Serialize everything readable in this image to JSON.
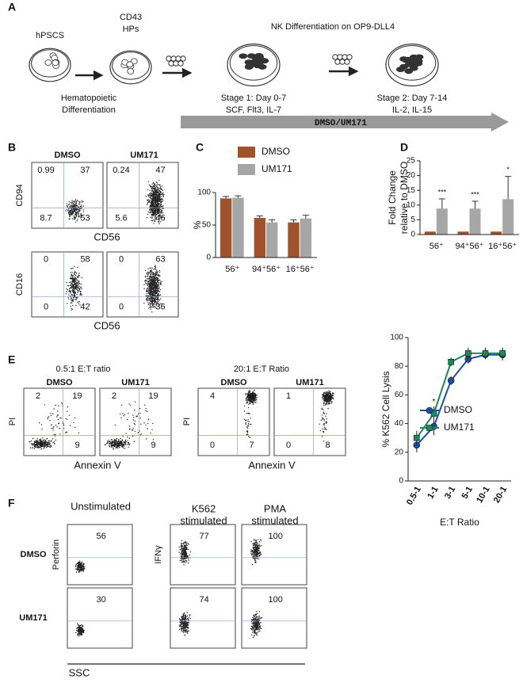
{
  "panel_labels": [
    "A",
    "B",
    "C",
    "D",
    "E",
    "F"
  ],
  "schematic": {
    "hpscs": "hPSCS",
    "cd43": [
      "CD43",
      "HPs"
    ],
    "hemato": [
      "Hematopoietic",
      "Differentiation"
    ],
    "nk": "NK Differentiation on OP9-DLL4",
    "stage1": [
      "Stage 1: Day 0-7",
      "SCF, Flt3, IL-7"
    ],
    "stage2": [
      "Stage 2: Day 7-14",
      "IL-2, IL-15"
    ],
    "treatment": "DMSO/UM171"
  },
  "flow_b": {
    "conditions": [
      "DMSO",
      "UM171"
    ],
    "rows": [
      {
        "y_label": "CD94",
        "x_label": "CD56",
        "quadrants": [
          [
            0.99,
            37,
            8.7,
            53
          ],
          [
            0.24,
            47,
            5.6,
            46
          ]
        ]
      },
      {
        "y_label": "CD16",
        "x_label": "CD56",
        "quadrants": [
          [
            0,
            58,
            0,
            42
          ],
          [
            0,
            63,
            0,
            36
          ]
        ]
      }
    ]
  },
  "flow_e": {
    "ratios": [
      "0.5:1 E:T ratio",
      "20:1 E:T Ratio"
    ],
    "conditions": [
      "DMSO",
      "UM171"
    ],
    "y_label": "PI",
    "x_label": "Annexin V",
    "quadrants": [
      [
        [
          2,
          19,
          69,
          9
        ],
        [
          2,
          19,
          70,
          9
        ]
      ],
      [
        [
          4,
          89,
          0,
          7
        ],
        [
          1,
          91,
          0,
          8
        ]
      ]
    ]
  },
  "flow_f": {
    "columns": [
      [
        "Unstimulated"
      ],
      [
        "K562",
        "stimulated"
      ],
      [
        "PMA",
        "stimulated"
      ]
    ],
    "rows": [
      "DMSO",
      "UM171"
    ],
    "y_labels": [
      "Perforin",
      "IFNγ"
    ],
    "x_label": "SSC",
    "values": [
      [
        56,
        77,
        100
      ],
      [
        30,
        74,
        100
      ]
    ]
  },
  "chart_data": [
    {
      "type": "bar",
      "categories": [
        "56⁺",
        "94⁺56⁺",
        "16⁺56⁺"
      ],
      "series": [
        {
          "name": "DMSO",
          "color": "#a0522d",
          "values": [
            91,
            61,
            54
          ],
          "errors": [
            3,
            3,
            4
          ]
        },
        {
          "name": "UM171",
          "color": "#a6a6a6",
          "values": [
            92,
            54,
            60
          ],
          "errors": [
            3,
            4,
            5
          ]
        }
      ],
      "ylabel": "%",
      "ylim": [
        0,
        100
      ],
      "yticks": [
        0,
        50,
        100
      ],
      "legend": "top"
    },
    {
      "type": "bar",
      "categories": [
        "56⁺",
        "94⁺56⁺",
        "16⁺56⁺"
      ],
      "series": [
        {
          "color": "#a0522d",
          "values": [
            1,
            1,
            1
          ]
        },
        {
          "color": "#a6a6a6",
          "values": [
            8.8,
            8.8,
            12
          ],
          "errors": [
            3.3,
            2.5,
            7.7
          ]
        }
      ],
      "annotations": [
        "***",
        "***",
        "*"
      ],
      "ylabel": [
        "Fold Change",
        "relative to DMSO"
      ],
      "ylim": [
        0,
        25
      ],
      "yticks": [
        0,
        5,
        10,
        15,
        20,
        25
      ]
    },
    {
      "type": "line",
      "categories": [
        "0.5-1",
        "1-1",
        "3-1",
        "5-1",
        "10-1",
        "20-1"
      ],
      "series": [
        {
          "name": "DMSO",
          "color": "#1f4e9c",
          "marker": "circle",
          "values": [
            25,
            38,
            70,
            85,
            88,
            88
          ],
          "errors": [
            5,
            6,
            3,
            3,
            3,
            4
          ]
        },
        {
          "name": "UM171",
          "color": "#1a8a5a",
          "marker": "square",
          "values": [
            30,
            47,
            83,
            89,
            89,
            89
          ],
          "errors": [
            5,
            5,
            3,
            4,
            4,
            4
          ]
        }
      ],
      "annotations": [
        null,
        "*",
        null,
        null,
        null,
        null
      ],
      "ylabel": "% K562 Cell Lysis",
      "xlabel": "E:T Ratio",
      "ylim": [
        0,
        100
      ],
      "yticks": [
        0,
        20,
        40,
        60,
        80,
        100
      ],
      "legend": "right"
    }
  ]
}
